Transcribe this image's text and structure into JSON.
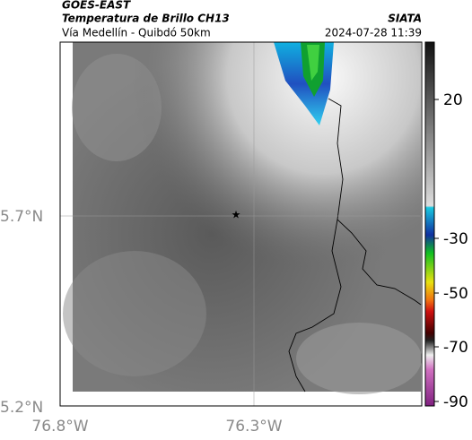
{
  "header": {
    "satellite": "GOES-EAST",
    "title": "Temperatura de Brillo CH13",
    "subtitle": "Vía Medellín - Quibdó 50km",
    "source": "SIATA",
    "datetime": "2024-07-28 11:39"
  },
  "map": {
    "lat_labels": [
      "5.7°N",
      "5.2°N"
    ],
    "lon_labels": [
      "76.8°W",
      "76.3°W"
    ]
  },
  "colorbar": {
    "ticks": [
      20,
      -30,
      -50,
      -70,
      -90
    ]
  }
}
